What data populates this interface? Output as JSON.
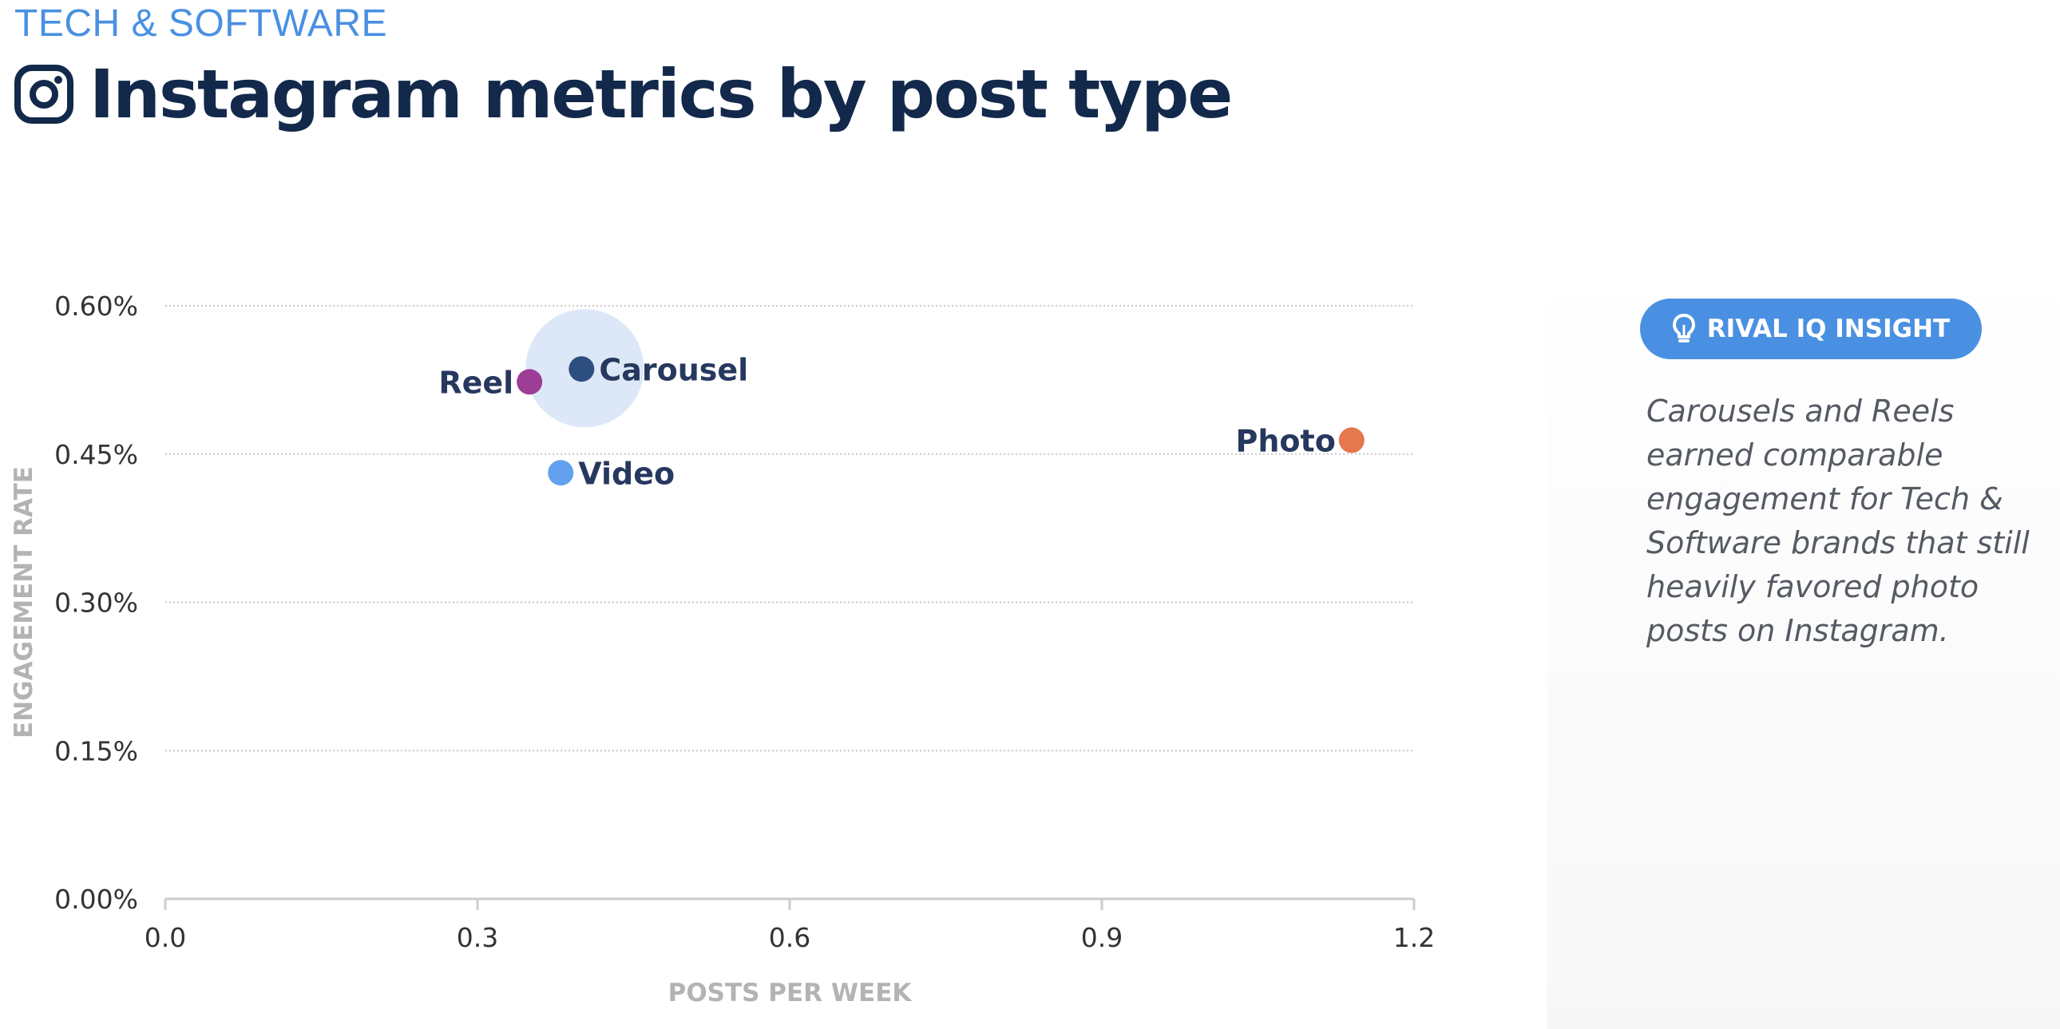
{
  "header": {
    "category": "TECH & SOFTWARE",
    "title": "Instagram metrics by post type",
    "icon": "instagram-icon"
  },
  "insight": {
    "button_label": "RIVAL IQ INSIGHT",
    "icon": "lightbulb-icon",
    "text": "Carousels and Reels earned comparable engagement for Tech & Software brands that still heavily favored photo posts on Instagram."
  },
  "chart_data": {
    "type": "scatter",
    "xlabel": "POSTS PER WEEK",
    "ylabel": "ENGAGEMENT RATE",
    "xlim": [
      0,
      1.2
    ],
    "ylim": [
      0,
      0.6
    ],
    "x_ticks": [
      "0.0",
      "0.3",
      "0.6",
      "0.9",
      "1.2"
    ],
    "y_ticks": [
      "0.00%",
      "0.15%",
      "0.30%",
      "0.45%",
      "0.60%"
    ],
    "grid": true,
    "points": [
      {
        "label": "Reel",
        "x": 0.35,
        "y": 0.523,
        "color": "#9c3d96",
        "label_side": "left"
      },
      {
        "label": "Carousel",
        "x": 0.4,
        "y": 0.536,
        "color": "#2d4f80",
        "label_side": "right",
        "highlight": true,
        "highlight_color": "#dce8f7"
      },
      {
        "label": "Video",
        "x": 0.38,
        "y": 0.431,
        "color": "#63a1ee",
        "label_side": "right"
      },
      {
        "label": "Photo",
        "x": 1.14,
        "y": 0.464,
        "color": "#e5784d",
        "label_side": "left"
      }
    ]
  }
}
